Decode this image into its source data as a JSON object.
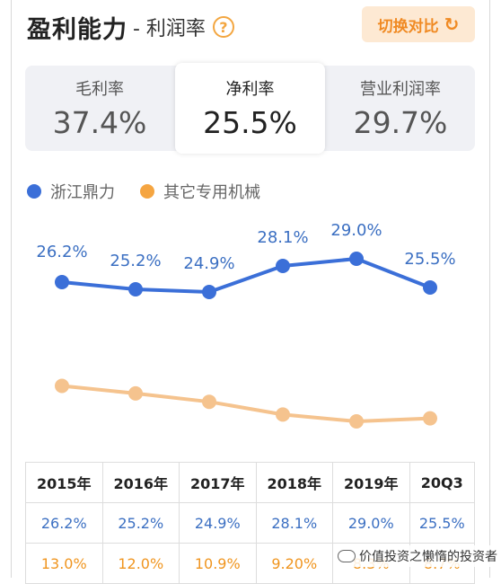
{
  "header": {
    "title": "盈利能力",
    "subtitle": "- 利润率",
    "help_icon": "?",
    "switch_label": "切换对比",
    "switch_icon": "↻"
  },
  "tabs": [
    {
      "label": "毛利率",
      "value": "37.4%",
      "active": false
    },
    {
      "label": "净利率",
      "value": "25.5%",
      "active": true
    },
    {
      "label": "营业利润率",
      "value": "29.7%",
      "active": false
    }
  ],
  "colors": {
    "blue": "#3b6fd8",
    "orange": "#f5c38e",
    "orange_text": "#f0951f",
    "blue_text": "#3b6fc2"
  },
  "chart_data": {
    "type": "line",
    "categories": [
      "2015年",
      "2016年",
      "2017年",
      "2018年",
      "2019年",
      "20Q3"
    ],
    "series": [
      {
        "name": "浙江鼎力",
        "values": [
          26.2,
          25.2,
          24.9,
          28.1,
          29.0,
          25.5
        ],
        "labels": [
          "26.2%",
          "25.2%",
          "24.9%",
          "28.1%",
          "29.0%",
          "25.5%"
        ]
      },
      {
        "name": "其它专用机械",
        "values": [
          13.0,
          12.0,
          10.9,
          9.2,
          8.3,
          8.7
        ],
        "labels": [
          "13.0%",
          "12.0%",
          "10.9%",
          "9.20%",
          "8.3%",
          "8.7%"
        ]
      }
    ],
    "legend_position": "top-left",
    "grid": false
  },
  "watermark": "价值投资之懒惰的投资者"
}
